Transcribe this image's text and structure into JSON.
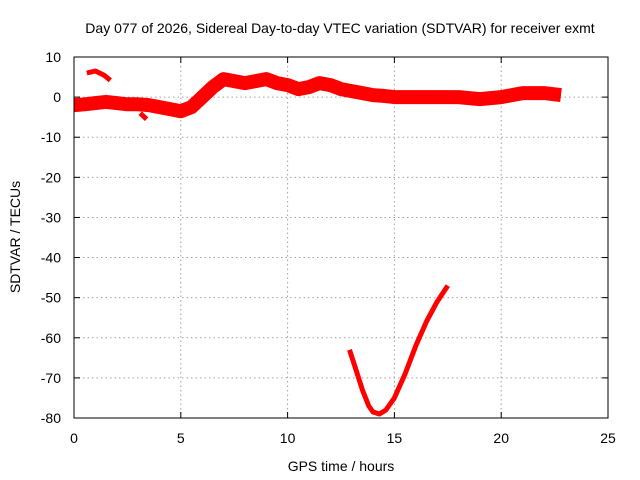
{
  "chart_data": {
    "type": "line",
    "title": "Day 077 of 2026, Sidereal Day-to-day VTEC variation (SDTVAR) for receiver exmt",
    "xlabel": "GPS time / hours",
    "ylabel": "SDTVAR / TECUs",
    "xlim": [
      0,
      25
    ],
    "ylim": [
      -80,
      10
    ],
    "xticks": [
      0,
      5,
      10,
      15,
      20,
      25
    ],
    "yticks": [
      10,
      0,
      -10,
      -20,
      -30,
      -40,
      -50,
      -60,
      -70,
      -80
    ],
    "xtick_labels": [
      "0",
      "5",
      "10",
      "15",
      "20",
      "25"
    ],
    "ytick_labels": [
      "10",
      "0",
      "-10",
      "-20",
      "-30",
      "-40",
      "-50",
      "-60",
      "-70",
      "-80"
    ],
    "grid": true,
    "series_color": "#ff0000",
    "series": [
      {
        "name": "main-band",
        "band_width": 3.5,
        "x": [
          0,
          0.5,
          1,
          1.5,
          2,
          2.5,
          3,
          3.5,
          4,
          4.5,
          5,
          5.5,
          6,
          6.5,
          7,
          7.5,
          8,
          8.5,
          9,
          9.5,
          10,
          10.5,
          11,
          11.5,
          12,
          12.5,
          13,
          13.5,
          14,
          14.5,
          15,
          16,
          17,
          18,
          19,
          20,
          21,
          22,
          22.8
        ],
        "values": [
          -2,
          -1.8,
          -1.5,
          -1.2,
          -1.5,
          -1.8,
          -1.8,
          -2,
          -2.5,
          -3,
          -3.5,
          -2.5,
          0,
          2.5,
          4.5,
          4,
          3.5,
          4,
          4.5,
          3.5,
          3,
          2,
          2.5,
          3.5,
          3,
          2,
          1.5,
          1,
          0.5,
          0.3,
          0,
          0,
          0,
          0,
          -0.5,
          0,
          1,
          1,
          0.5
        ]
      },
      {
        "name": "dip-segment",
        "x": [
          3.1,
          3.4
        ],
        "values": [
          -4,
          -5.5
        ]
      },
      {
        "name": "upper-fragment",
        "x": [
          0.6,
          1.0,
          1.4,
          1.7
        ],
        "values": [
          6,
          6.5,
          5.5,
          4.2
        ]
      },
      {
        "name": "v-arc",
        "x": [
          12.9,
          13.2,
          13.5,
          13.8,
          14.0,
          14.3,
          14.6,
          15.0,
          15.5,
          16.0,
          16.5,
          17.0,
          17.5
        ],
        "values": [
          -63,
          -68,
          -73,
          -77,
          -78.5,
          -79,
          -78,
          -75,
          -69,
          -62,
          -56,
          -51,
          -47
        ]
      }
    ]
  }
}
